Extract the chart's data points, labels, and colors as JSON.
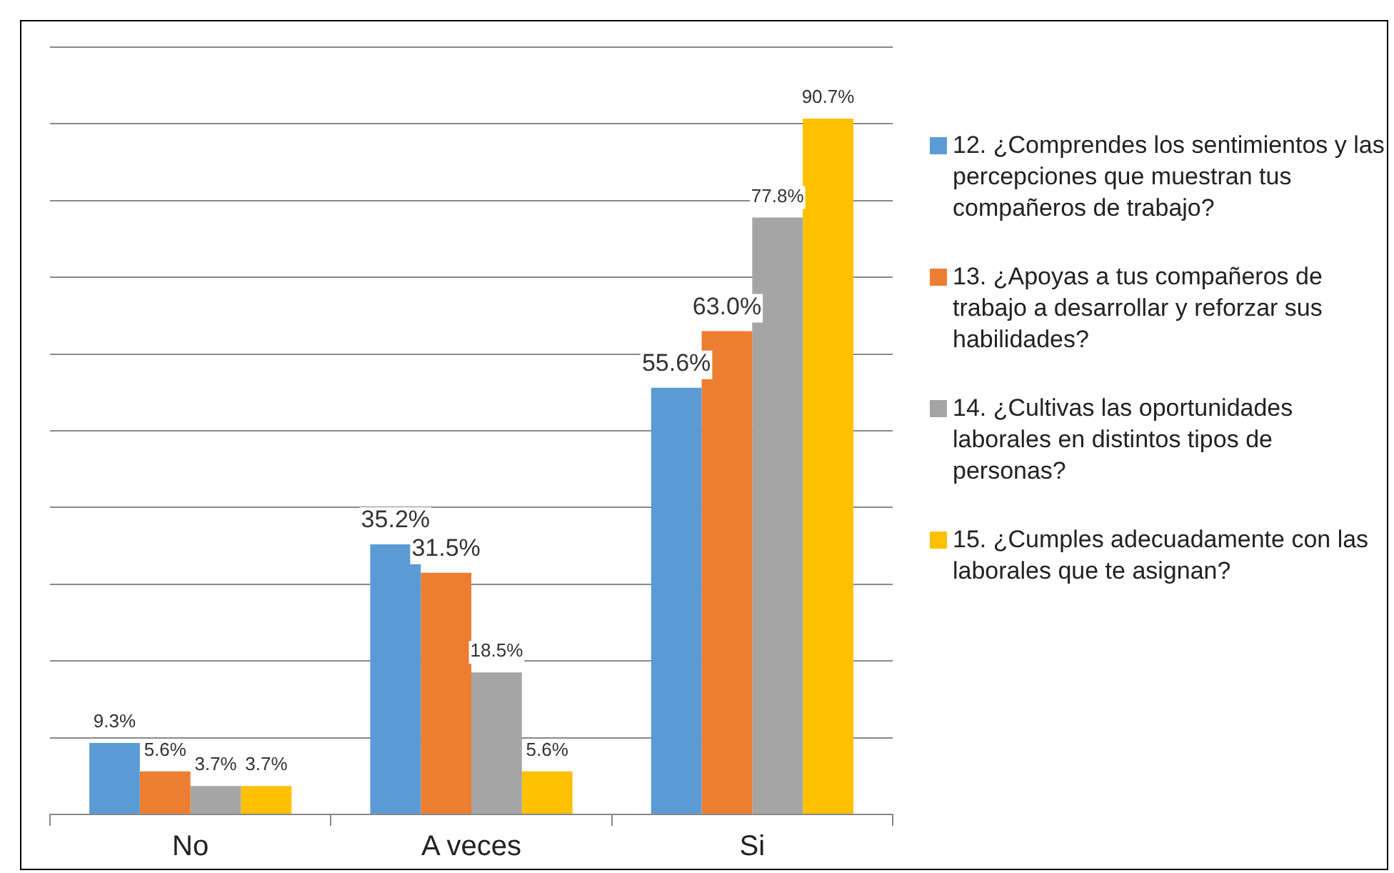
{
  "chart_data": {
    "type": "bar",
    "categories": [
      "No",
      "A veces",
      "Si"
    ],
    "series": [
      {
        "name": "12.   ¿Comprendes los sentimientos y las percepciones que muestran tus compañeros de trabajo?",
        "color": "#5b9bd5",
        "values": [
          9.3,
          35.2,
          55.6
        ],
        "value_labels": [
          "9.3%",
          "35.2%",
          "55.6%"
        ]
      },
      {
        "name": "13.   ¿Apoyas a tus compañeros de trabajo a desarrollar y reforzar sus habilidades?",
        "color": "#ed7d31",
        "values": [
          5.6,
          31.5,
          63.0
        ],
        "value_labels": [
          "5.6%",
          "31.5%",
          "63.0%"
        ]
      },
      {
        "name": "14.   ¿Cultivas las oportunidades laborales en distintos tipos de personas?",
        "color": "#a5a5a5",
        "values": [
          3.7,
          18.5,
          77.8
        ],
        "value_labels": [
          "3.7%",
          "18.5%",
          "77.8%"
        ]
      },
      {
        "name": "15.   ¿Cumples adecuadamente con las laborales que te asignan?",
        "color": "#ffc000",
        "values": [
          3.7,
          5.6,
          90.7
        ],
        "value_labels": [
          "3.7%",
          "5.6%",
          "90.7%"
        ]
      }
    ],
    "ylim": [
      0,
      100
    ],
    "yticks": [
      {
        "value": 0,
        "label": null
      },
      {
        "value": 10,
        "label": null
      },
      {
        "value": 20,
        "label": null
      },
      {
        "value": 30,
        "label": null
      },
      {
        "value": 40,
        "label": null
      },
      {
        "value": 50,
        "label": null
      },
      {
        "value": 60,
        "label": null
      },
      {
        "value": 70,
        "label": null
      },
      {
        "value": 80,
        "label": null
      },
      {
        "value": 90,
        "label": null
      },
      {
        "value": 100,
        "label": null
      }
    ],
    "tick_labels": "x",
    "grid": "y",
    "legend": "right"
  }
}
